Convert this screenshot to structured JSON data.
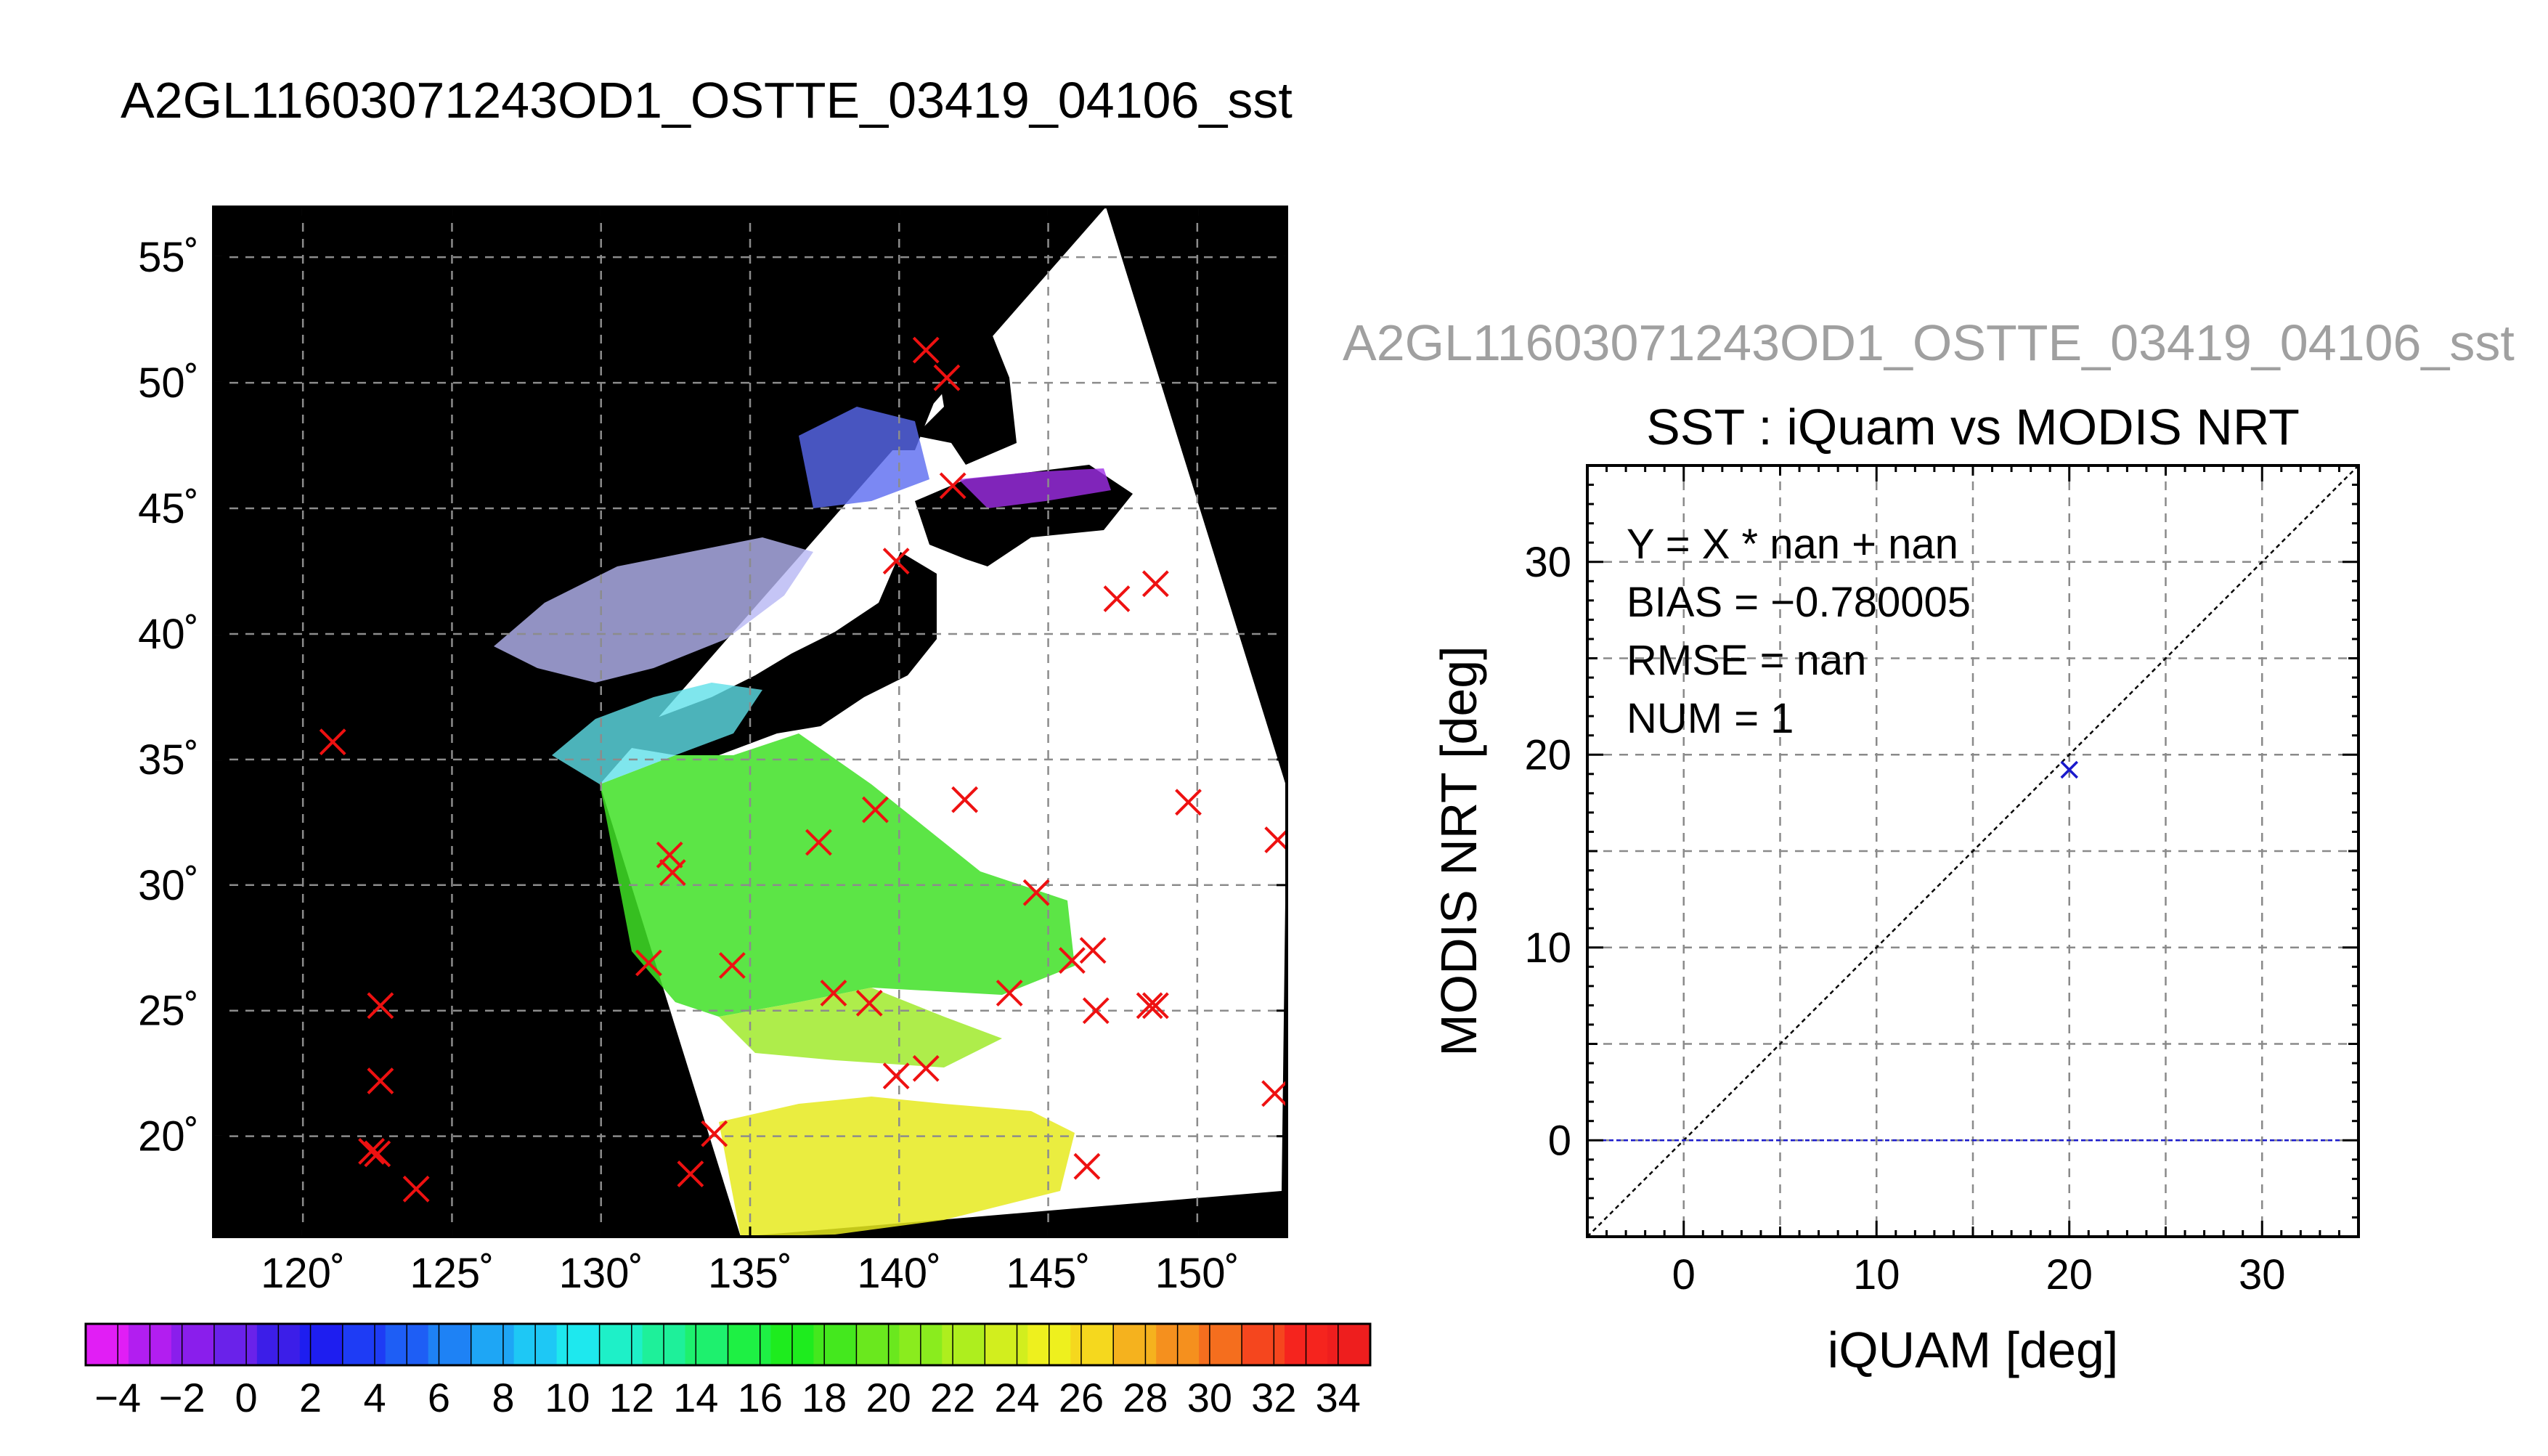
{
  "page_title": "A2GL11603071243OD1_OSTTE_03419_04106_sst",
  "chart_data": [
    {
      "type": "map",
      "title": "A2GL11603071243OD1_OSTTE_03419_04106_sst",
      "lon_range": [
        117,
        153
      ],
      "lat_range": [
        16,
        57
      ],
      "lon_ticks": [
        120,
        125,
        130,
        135,
        140,
        145,
        150
      ],
      "lat_ticks": [
        20,
        25,
        30,
        35,
        40,
        45,
        50,
        55
      ],
      "lon_tick_labels": [
        "120˚",
        "125˚",
        "130˚",
        "135˚",
        "140˚",
        "145˚",
        "150˚"
      ],
      "lat_tick_labels": [
        "20˚",
        "25˚",
        "30˚",
        "35˚",
        "40˚",
        "45˚",
        "50˚",
        "55˚"
      ],
      "grid": "dashed",
      "background_color": "#000000",
      "swath_color": "#ffffff",
      "marker_color": "#ee1111",
      "marker_symbol": "x",
      "buoy_points": [
        [
          140.9,
          51.3
        ],
        [
          141.6,
          50.2
        ],
        [
          141.8,
          45.9
        ],
        [
          139.9,
          42.9
        ],
        [
          147.3,
          41.4
        ],
        [
          148.6,
          42.0
        ],
        [
          121.0,
          35.7
        ],
        [
          139.2,
          33.0
        ],
        [
          142.2,
          33.4
        ],
        [
          149.7,
          33.3
        ],
        [
          152.7,
          31.8
        ],
        [
          132.3,
          31.2
        ],
        [
          132.4,
          30.5
        ],
        [
          137.3,
          31.7
        ],
        [
          144.6,
          29.7
        ],
        [
          131.6,
          26.9
        ],
        [
          134.4,
          26.8
        ],
        [
          137.8,
          25.7
        ],
        [
          139.0,
          25.3
        ],
        [
          143.7,
          25.7
        ],
        [
          145.8,
          27.0
        ],
        [
          146.5,
          27.4
        ],
        [
          146.6,
          25.0
        ],
        [
          148.4,
          25.2
        ],
        [
          148.6,
          25.2
        ],
        [
          122.6,
          25.2
        ],
        [
          122.6,
          22.2
        ],
        [
          139.9,
          22.4
        ],
        [
          140.9,
          22.7
        ],
        [
          152.6,
          21.7
        ],
        [
          122.3,
          19.4
        ],
        [
          122.5,
          19.3
        ],
        [
          123.8,
          17.9
        ],
        [
          133.8,
          20.1
        ],
        [
          133.0,
          18.5
        ],
        [
          146.3,
          18.8
        ]
      ],
      "colorbar": {
        "min": -5,
        "max": 35,
        "step": 2,
        "tick_labels": [
          "−4",
          "−2",
          "0",
          "2",
          "4",
          "6",
          "8",
          "10",
          "12",
          "14",
          "16",
          "18",
          "20",
          "22",
          "24",
          "26",
          "28",
          "30",
          "32",
          "34"
        ],
        "tick_values": [
          -4,
          -2,
          0,
          2,
          4,
          6,
          8,
          10,
          12,
          14,
          16,
          18,
          20,
          22,
          24,
          26,
          28,
          30,
          32,
          34
        ],
        "colors": [
          "#e11ef5",
          "#b21ef0",
          "#8a1eec",
          "#6a22ea",
          "#3c1ee8",
          "#1e1ef0",
          "#1e3cf5",
          "#1e5ef5",
          "#1e82f5",
          "#1ea6f5",
          "#1ec8f5",
          "#1ee8ee",
          "#1ef0c8",
          "#1ef09a",
          "#1ef06e",
          "#1ef044",
          "#1eec1e",
          "#44e81e",
          "#6ae81e",
          "#8aec1e",
          "#aeee1e",
          "#d2ee1e",
          "#eef01e",
          "#f5d81e",
          "#f5b21e",
          "#f5901e",
          "#f56e1e",
          "#f5461e",
          "#f5241e",
          "#ee1e1e"
        ]
      }
    },
    {
      "type": "scatter",
      "header": "A2GL11603071243OD1_OSTTE_03419_04106_sst",
      "title": "SST : iQuam vs MODIS NRT",
      "xlabel": "iQUAM [deg]",
      "ylabel": "MODIS NRT [deg]",
      "xlim": [
        -5,
        35
      ],
      "ylim": [
        -5,
        35
      ],
      "x_ticks": [
        0,
        10,
        20,
        30
      ],
      "y_ticks": [
        0,
        10,
        20,
        30
      ],
      "x_tick_labels": [
        "0",
        "10",
        "20",
        "30"
      ],
      "y_tick_labels": [
        "0",
        "10",
        "20",
        "30"
      ],
      "grid": "dashed",
      "stats": [
        "Y = X * nan + nan",
        "BIAS = −0.780005",
        "RMSE = nan",
        "NUM = 1"
      ],
      "points": [
        {
          "x": 20.0,
          "y": 19.22
        }
      ],
      "point_color": "#1a1acc",
      "identity_line": true,
      "zero_line": true,
      "zero_line_color": "#1a1acc"
    }
  ]
}
